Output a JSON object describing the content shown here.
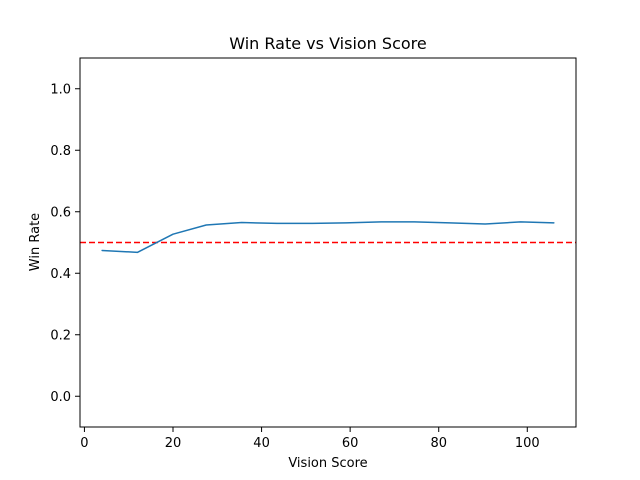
{
  "chart_data": {
    "type": "line",
    "title": "Win Rate vs Vision Score",
    "xlabel": "Vision Score",
    "ylabel": "Win Rate",
    "xlim": [
      -1,
      111
    ],
    "ylim": [
      -0.1,
      1.1
    ],
    "xticks": [
      0,
      20,
      40,
      60,
      80,
      100
    ],
    "yticks": [
      0.0,
      0.2,
      0.4,
      0.6,
      0.8,
      1.0
    ],
    "xtick_labels": [
      "0",
      "20",
      "40",
      "60",
      "80",
      "100"
    ],
    "ytick_labels": [
      "0.0",
      "0.2",
      "0.4",
      "0.6",
      "0.8",
      "1.0"
    ],
    "grid": false,
    "series": [
      {
        "x": [
          4,
          12,
          20,
          27.5,
          35.5,
          43.5,
          51.5,
          59,
          67,
          74.5,
          82.5,
          90.5,
          98.5,
          106
        ],
        "y": [
          0.474,
          0.468,
          0.527,
          0.557,
          0.565,
          0.562,
          0.562,
          0.564,
          0.567,
          0.567,
          0.564,
          0.56,
          0.567,
          0.564
        ],
        "color": "#1f77b4"
      }
    ],
    "reference_lines": [
      {
        "y": 0.5,
        "color": "#ff0000",
        "style": "dashed"
      }
    ]
  }
}
